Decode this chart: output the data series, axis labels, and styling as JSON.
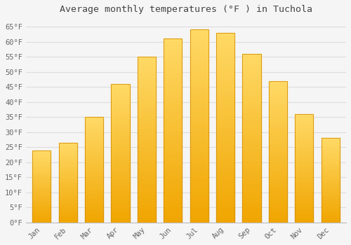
{
  "title": "Average monthly temperatures (°F ) in Tuchola",
  "months": [
    "Jan",
    "Feb",
    "Mar",
    "Apr",
    "May",
    "Jun",
    "Jul",
    "Aug",
    "Sep",
    "Oct",
    "Nov",
    "Dec"
  ],
  "values": [
    24,
    26.5,
    35,
    46,
    55,
    61,
    64,
    63,
    56,
    47,
    36,
    28
  ],
  "bar_color_top": "#FFD966",
  "bar_color_bottom": "#F0A500",
  "bar_edge_color": "#D4900A",
  "background_color": "#f5f5f5",
  "plot_bg_color": "#f5f5f5",
  "grid_color": "#dddddd",
  "ylim": [
    0,
    68
  ],
  "yticks": [
    0,
    5,
    10,
    15,
    20,
    25,
    30,
    35,
    40,
    45,
    50,
    55,
    60,
    65
  ],
  "title_fontsize": 9.5,
  "tick_fontsize": 7.5,
  "title_color": "#444444",
  "tick_color": "#666666"
}
